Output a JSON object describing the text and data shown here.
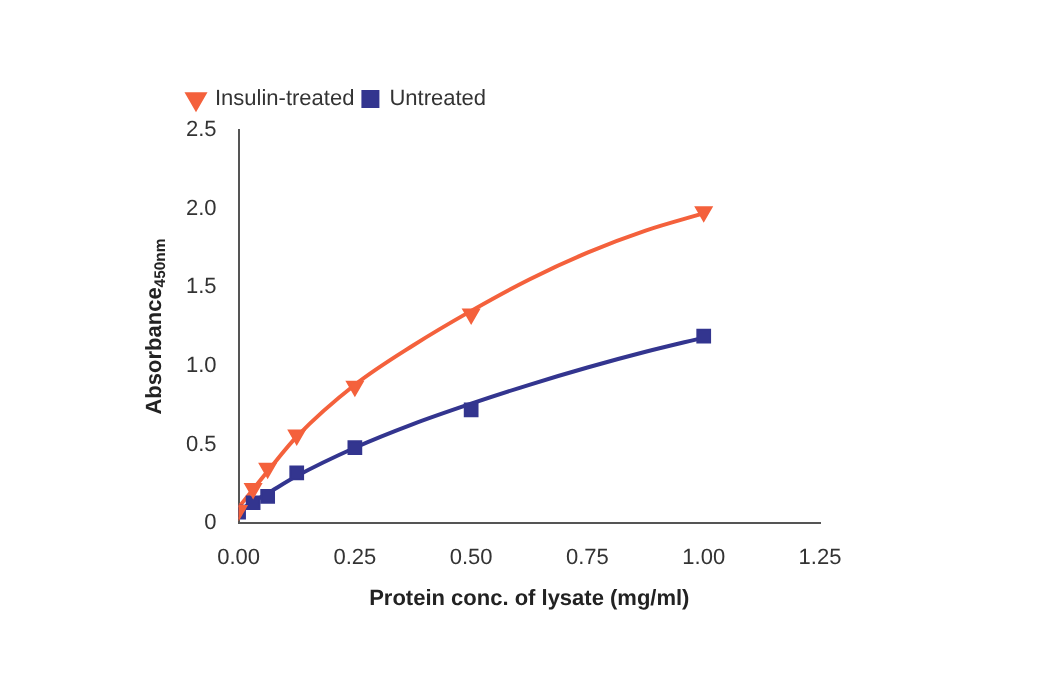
{
  "chart_data": {
    "type": "scatter",
    "xlabel": "Protein conc. of lysate (mg/ml)",
    "ylabel": "Absorbance$_{450nm}$",
    "series": [
      {
        "name": "Insulin-treated",
        "color": "#f4613c",
        "marker": "triangle",
        "x": [
          0,
          0.03125,
          0.0625,
          0.125,
          0.25,
          0.5,
          1
        ],
        "values": [
          0.08,
          0.22,
          0.35,
          0.56,
          0.87,
          1.33,
          1.98
        ]
      },
      {
        "name": "Untreated",
        "color": "#33358f",
        "marker": "square",
        "x": [
          0,
          0.03125,
          0.0625,
          0.125,
          0.25,
          0.5,
          1
        ],
        "values": [
          0.07,
          0.13,
          0.17,
          0.32,
          0.48,
          0.72,
          1.19
        ]
      },
      {
        "type": "line",
        "color": "#f4613c",
        "marker": "none",
        "x": [
          0,
          0.0625,
          0.125,
          0.25,
          0.375,
          0.5,
          0.625,
          0.75,
          0.875,
          1
        ],
        "values": [
          0.1,
          0.33,
          0.55,
          0.88,
          1.13,
          1.35,
          1.55,
          1.72,
          1.86,
          1.97
        ]
      },
      {
        "type": "line",
        "color": "#33358f",
        "marker": "none",
        "x": [
          0,
          0.0625,
          0.125,
          0.25,
          0.375,
          0.5,
          0.625,
          0.75,
          0.875,
          1
        ],
        "values": [
          0.08,
          0.19,
          0.3,
          0.48,
          0.63,
          0.76,
          0.88,
          0.99,
          1.09,
          1.18
        ]
      }
    ],
    "xlim": [
      0,
      1.25
    ],
    "xticks": [
      {
        "value": 0,
        "label": "0.00"
      },
      0.25,
      {
        "value": 0.5,
        "label": "0.50"
      },
      0.75,
      {
        "value": 1,
        "label": "1.00"
      },
      1.25
    ],
    "ylim": [
      0,
      2.5
    ],
    "yticks": [
      0,
      0.5,
      {
        "value": 1,
        "label": "1.0"
      },
      1.5,
      {
        "value": 2,
        "label": "2.0"
      },
      2.5
    ],
    "grid": false,
    "legend": "top left"
  }
}
